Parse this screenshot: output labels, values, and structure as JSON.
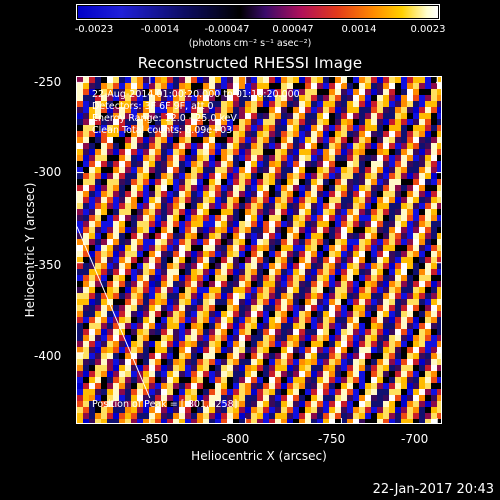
{
  "colorbar": {
    "ticks": [
      "-0.0023",
      "-0.0014",
      "-0.00047",
      "0.00047",
      "0.0014",
      "0.0023"
    ],
    "units": "(photons cm⁻² s⁻¹ asec⁻²)"
  },
  "title": "Reconstructed RHESSI Image",
  "annotations": {
    "time": "22-Aug-2014 01:00:20.000 to 01:10:20.000",
    "detectors": "Detectors: 3F 6F 9F, att 0",
    "energy": "Energy Range: 12.0 - 25.0 keV",
    "method": "Clean     Total counts: 6.09e+03",
    "peak": "Position of Peak = [-801, -258]"
  },
  "footer": "22-Jan-2017 20:43",
  "chart_data": {
    "type": "heatmap",
    "title": "Reconstructed RHESSI Image",
    "xlabel": "Heliocentric X (arcsec)",
    "ylabel": "Heliocentric Y (arcsec)",
    "xlim": [
      -888,
      -697
    ],
    "ylim": [
      -440,
      -247
    ],
    "x_ticks": [
      "-850",
      "-800",
      "-750",
      "-700"
    ],
    "x_tick_values": [
      -850,
      -800,
      -750,
      -700
    ],
    "y_ticks": [
      "-250",
      "-300",
      "-350",
      "-400"
    ],
    "y_tick_values": [
      -250,
      -300,
      -350,
      -400
    ],
    "colorbar_range": [
      -0.0023,
      0.0023
    ],
    "pattern": "diagonal stripes alternating positive (yellow/white) and negative (blue) flux",
    "limb_line": {
      "from": [
        -888,
        -330
      ],
      "to": [
        -850,
        -425
      ]
    }
  }
}
